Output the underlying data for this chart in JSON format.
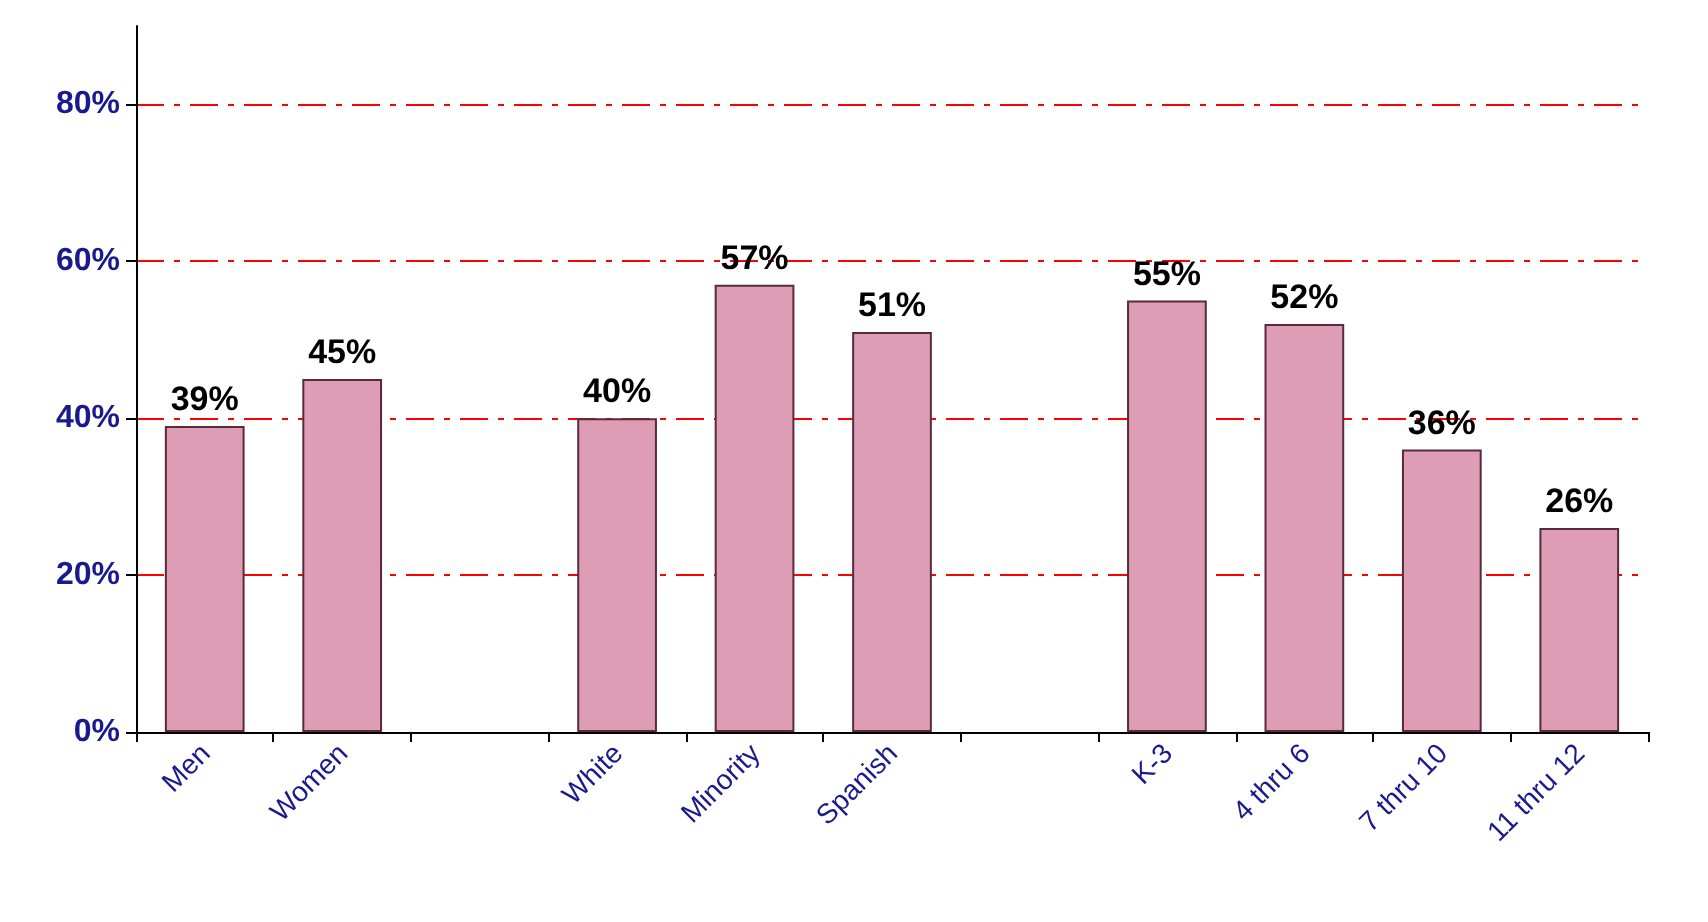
{
  "chart_data": {
    "type": "bar",
    "categories": [
      "Men",
      "Women",
      null,
      "White",
      "Minority",
      "Spanish",
      null,
      "K-3",
      "4 thru 6",
      "7 thru 10",
      "11 thru 12"
    ],
    "values": [
      39,
      45,
      null,
      40,
      57,
      51,
      null,
      55,
      52,
      36,
      26
    ],
    "value_labels": [
      "39%",
      "45%",
      null,
      "40%",
      "57%",
      "51%",
      null,
      "55%",
      "52%",
      "36%",
      "26%"
    ],
    "color": "#dd9db5",
    "ylim": [
      0,
      90
    ],
    "yticks": [
      {
        "value": 0,
        "label": "0%"
      },
      {
        "value": 20,
        "label": "20%"
      },
      {
        "value": 40,
        "label": "40%"
      },
      {
        "value": 60,
        "label": "60%"
      },
      {
        "value": 80,
        "label": "80%"
      }
    ],
    "grid": "y"
  }
}
